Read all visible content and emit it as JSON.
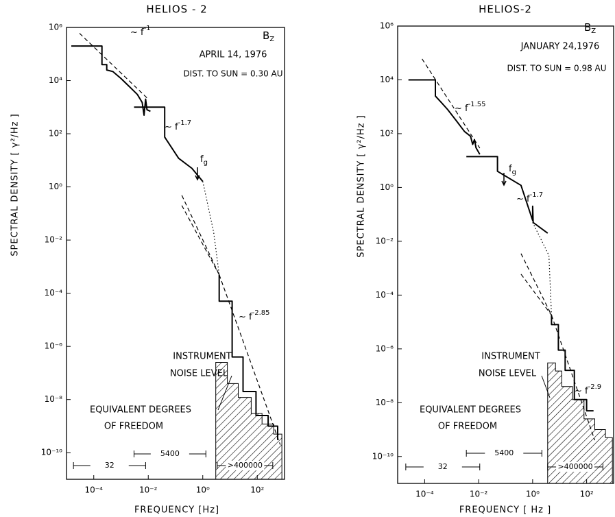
{
  "chart_data": [
    {
      "type": "line",
      "title": "HELIOS - 2",
      "x_label": "FREQUENCY [Hz]",
      "y_label": "SPECTRAL DENSITY  [ γ²/Hz ]",
      "xscale": "log",
      "yscale": "log",
      "xlim": [
        1e-05,
        1000
      ],
      "ylim": [
        1e-11,
        1000000
      ],
      "xticks": [
        {
          "value": 0.0001,
          "label": "10⁻⁴"
        },
        {
          "value": 0.01,
          "label": "10⁻²"
        },
        {
          "value": 1,
          "label": "10⁰"
        },
        {
          "value": 100,
          "label": "10²"
        }
      ],
      "yticks": [
        {
          "value": 1000000,
          "label": "10⁶"
        },
        {
          "value": 10000,
          "label": "10⁴"
        },
        {
          "value": 100,
          "label": "10²"
        },
        {
          "value": 1,
          "label": "10⁰"
        },
        {
          "value": 0.01,
          "label": "10⁻²"
        },
        {
          "value": 0.0001,
          "label": "10⁻⁴"
        },
        {
          "value": 1e-06,
          "label": "10⁻⁶"
        },
        {
          "value": 1e-08,
          "label": "10⁻⁸"
        },
        {
          "value": 1e-10,
          "label": "10⁻¹⁰"
        }
      ],
      "component": {
        "base": "B",
        "sub": "Z"
      },
      "date": "APRIL 14, 1976",
      "distance": "DIST. TO SUN = 0.30 AU",
      "slopes": [
        {
          "base": "~ f",
          "sup": "-1"
        },
        {
          "base": "~ f",
          "sup": "-1.7"
        },
        {
          "base": "~ f",
          "sup": "-2.85"
        }
      ],
      "cutoff": {
        "base": "f",
        "sub": "g"
      },
      "noise_label": [
        "INSTRUMENT",
        "NOISE LEVEL"
      ],
      "dof_label": [
        "EQUIVALENT DEGREES",
        "OF FREEDOM"
      ],
      "dof_ranges": [
        {
          "label": "32",
          "xrange": [
            1.8e-05,
            0.008
          ]
        },
        {
          "label": "5400",
          "xrange": [
            0.003,
            1.3
          ]
        },
        {
          "label": ">400000",
          "xrange": [
            3.4,
            370
          ]
        }
      ],
      "series": [
        {
          "style": "solid",
          "color": "#000000",
          "x": [
            1.5e-05,
            0.0002,
            0.0002,
            0.0003,
            0.0003,
            0.0005,
            0.001,
            0.002,
            0.004,
            0.006,
            0.007,
            0.008,
            0.009,
            0.012,
            null,
            0.003,
            0.04,
            0.04,
            0.13,
            0.4,
            1,
            null,
            4,
            4,
            12,
            12,
            30,
            30,
            90,
            90,
            250,
            250,
            560,
            560
          ],
          "values": [
            200000,
            200000,
            40000,
            40000,
            25000,
            22000,
            12000,
            6000,
            3000,
            1500,
            500,
            2000,
            800,
            700,
            null,
            1000,
            1000,
            75,
            12,
            5,
            1.6,
            null,
            0.0005,
            5e-05,
            5e-05,
            4e-07,
            4e-07,
            2e-08,
            2e-08,
            2.5e-09,
            2.5e-09,
            1e-09,
            1e-09,
            3e-10
          ]
        },
        {
          "style": "dotted",
          "color": "#000000",
          "x": [
            1,
            2.5,
            4
          ],
          "values": [
            1.6,
            0.02,
            0.0005
          ]
        },
        {
          "style": "dashed",
          "color": "#000000",
          "x": [
            0.17,
            4
          ],
          "values": [
            0.48,
            0.0005
          ]
        },
        {
          "style": "dashed",
          "color": "#000000",
          "x": [
            0.17,
            4
          ],
          "values": [
            0.2,
            0.0005
          ]
        },
        {
          "style": "dashed",
          "color": "#000000",
          "x": [
            3e-05,
            0.01
          ],
          "values": [
            600000,
            2000
          ]
        },
        {
          "style": "dashed",
          "color": "#000000",
          "x": [
            4,
            700
          ],
          "values": [
            0.0005,
            2e-10
          ]
        },
        {
          "style": "hatch",
          "color": "#000000",
          "x": [
            3,
            3,
            8,
            8,
            20,
            20,
            60,
            60,
            150,
            150,
            400,
            400,
            800
          ],
          "values": [
            5e-10,
            2.5e-07,
            2.5e-07,
            4e-08,
            4e-08,
            1.2e-08,
            1.2e-08,
            3e-09,
            3e-09,
            1.2e-09,
            1.2e-09,
            5e-10,
            5e-10
          ]
        }
      ]
    },
    {
      "type": "line",
      "title": "HELIOS-2",
      "x_label": "FREQUENCY [ Hz ]",
      "y_label": "SPECTRAL DENSITY  [ γ²/Hz ]",
      "xscale": "log",
      "yscale": "log",
      "xlim": [
        1e-05,
        1000
      ],
      "ylim": [
        1e-11,
        1000000
      ],
      "xticks": [
        {
          "value": 0.0001,
          "label": "10⁻⁴"
        },
        {
          "value": 0.01,
          "label": "10⁻²"
        },
        {
          "value": 1,
          "label": "10⁰"
        },
        {
          "value": 100,
          "label": "10²"
        }
      ],
      "yticks": [
        {
          "value": 1000000,
          "label": "10⁶"
        },
        {
          "value": 10000,
          "label": "10⁴"
        },
        {
          "value": 100,
          "label": "10²"
        },
        {
          "value": 1,
          "label": "10⁰"
        },
        {
          "value": 0.01,
          "label": "10⁻²"
        },
        {
          "value": 0.0001,
          "label": "10⁻⁴"
        },
        {
          "value": 1e-06,
          "label": "10⁻⁶"
        },
        {
          "value": 1e-08,
          "label": "10⁻⁸"
        },
        {
          "value": 1e-10,
          "label": "10⁻¹⁰"
        }
      ],
      "component": {
        "base": "B",
        "sub": "Z"
      },
      "date": "JANUARY 24,1976",
      "distance": "DIST. TO SUN = 0.98 AU",
      "slopes": [
        {
          "base": "~ f",
          "sup": "-1.55"
        },
        {
          "base": "~ f",
          "sup": "-1.7"
        },
        {
          "base": "~ f",
          "sup": "-2.9"
        }
      ],
      "cutoff": {
        "base": "f",
        "sub": "g"
      },
      "noise_label": [
        "INSTRUMENT",
        "NOISE LEVEL"
      ],
      "dof_label": [
        "EQUIVALENT DEGREES",
        "OF FREEDOM"
      ],
      "dof_ranges": [
        {
          "label": "32",
          "xrange": [
            2e-05,
            0.011
          ]
        },
        {
          "label": "5400",
          "xrange": [
            0.0035,
            2.2
          ]
        },
        {
          "label": ">400000",
          "xrange": [
            3.6,
            400
          ]
        }
      ],
      "series": [
        {
          "style": "solid",
          "color": "#000000",
          "x": [
            2.5e-05,
            0.00025,
            0.00025,
            0.0004,
            0.0007,
            0.0015,
            0.003,
            0.005,
            0.006,
            0.007,
            0.008,
            0.011,
            null,
            0.0035,
            0.05,
            0.05,
            0.37,
            1,
            1,
            1.05,
            3.6,
            null,
            5,
            5,
            9,
            9,
            16,
            16,
            35,
            35,
            100,
            100,
            180
          ],
          "values": [
            10000,
            10000,
            2500,
            1500,
            800,
            300,
            120,
            80,
            40,
            60,
            30,
            17,
            null,
            14,
            14,
            4,
            1.2,
            0.06,
            0.2,
            0.05,
            0.02,
            null,
            1.8e-05,
            8e-06,
            8e-06,
            9e-07,
            9e-07,
            1.6e-07,
            1.6e-07,
            1.3e-08,
            1.3e-08,
            5e-09,
            5e-09
          ]
        },
        {
          "style": "dotted",
          "color": "#000000",
          "x": [
            1,
            4,
            5
          ],
          "values": [
            0.05,
            0.003,
            1.8e-05
          ]
        },
        {
          "style": "dashed",
          "color": "#000000",
          "x": [
            0.37,
            5
          ],
          "values": [
            0.0035,
            1.8e-05
          ]
        },
        {
          "style": "dashed",
          "color": "#000000",
          "x": [
            0.37,
            5
          ],
          "values": [
            0.0006,
            1.8e-05
          ]
        },
        {
          "style": "dashed",
          "color": "#000000",
          "x": [
            8e-05,
            0.011
          ],
          "values": [
            60000,
            29
          ]
        },
        {
          "style": "dashed",
          "color": "#000000",
          "x": [
            5,
            200
          ],
          "values": [
            1.8e-05,
            4e-10
          ]
        },
        {
          "style": "hatch",
          "color": "#000000",
          "x": [
            3.6,
            3.6,
            7,
            7,
            12,
            12,
            30,
            30,
            80,
            80,
            200,
            200,
            500,
            500,
            900
          ],
          "values": [
            2e-10,
            3e-07,
            3e-07,
            1.5e-07,
            1.5e-07,
            4e-08,
            4e-08,
            1.3e-08,
            1.3e-08,
            2.5e-09,
            2.5e-09,
            1e-09,
            1e-09,
            5e-10,
            5e-10
          ]
        }
      ]
    }
  ]
}
